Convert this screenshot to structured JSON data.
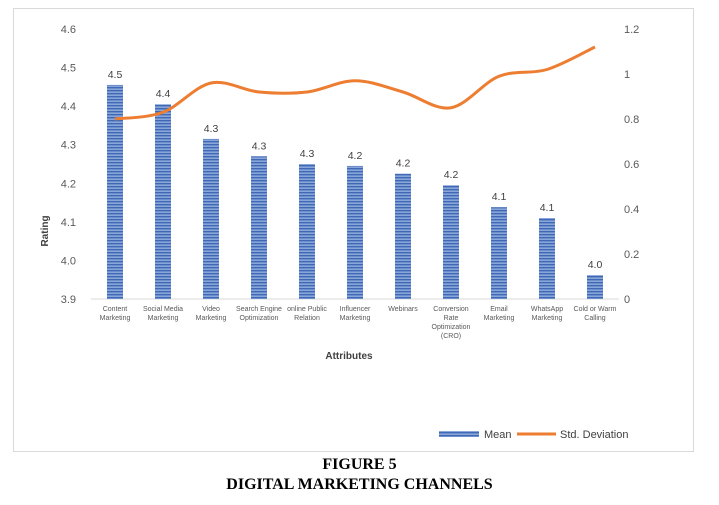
{
  "figure": {
    "number_label": "FIGURE 5",
    "title": "DIGITAL MARKETING CHANNELS"
  },
  "chart_data": {
    "type": "bar",
    "xlabel": "Attributes",
    "ylabel": "Rating",
    "ylim": [
      3.9,
      4.6
    ],
    "y_ticks": [
      "3.9",
      "4.0",
      "4.1",
      "4.2",
      "4.3",
      "4.4",
      "4.5",
      "4.6"
    ],
    "y2lim": [
      0,
      1.2
    ],
    "y2_ticks": [
      "0",
      "0.2",
      "0.4",
      "0.6",
      "0.8",
      "1",
      "1.2"
    ],
    "categories": [
      [
        "Content",
        "Marketing"
      ],
      [
        "Social Media",
        "Marketing"
      ],
      [
        "Video",
        "Marketing"
      ],
      [
        "Search Engine",
        "Optimization"
      ],
      [
        "online Public",
        "Relation"
      ],
      [
        "Influencer",
        "Marketing"
      ],
      [
        "Webinars"
      ],
      [
        "Conversion",
        "Rate",
        "Optimization",
        "(CRO)"
      ],
      [
        "Email",
        "Marketing"
      ],
      [
        "WhatsApp",
        "Marketing"
      ],
      [
        "Cold or Warm",
        "Calling"
      ]
    ],
    "series": [
      {
        "name": "Mean",
        "type": "bar",
        "axis": "left",
        "values": [
          4.455,
          4.405,
          4.315,
          4.27,
          4.25,
          4.245,
          4.225,
          4.195,
          4.138,
          4.11,
          3.962
        ],
        "data_labels": [
          "4.5",
          "4.4",
          "4.3",
          "4.3",
          "4.3",
          "4.2",
          "4.2",
          "4.2",
          "4.1",
          "4.1",
          "4.0"
        ],
        "color": "#4472c4"
      },
      {
        "name": "Std. Deviation",
        "type": "line",
        "axis": "right",
        "values": [
          0.8,
          0.83,
          0.96,
          0.92,
          0.92,
          0.97,
          0.92,
          0.85,
          0.99,
          1.02,
          1.12
        ],
        "color": "#ed7d31"
      }
    ],
    "grid": false,
    "legend_position": "bottom-right"
  }
}
